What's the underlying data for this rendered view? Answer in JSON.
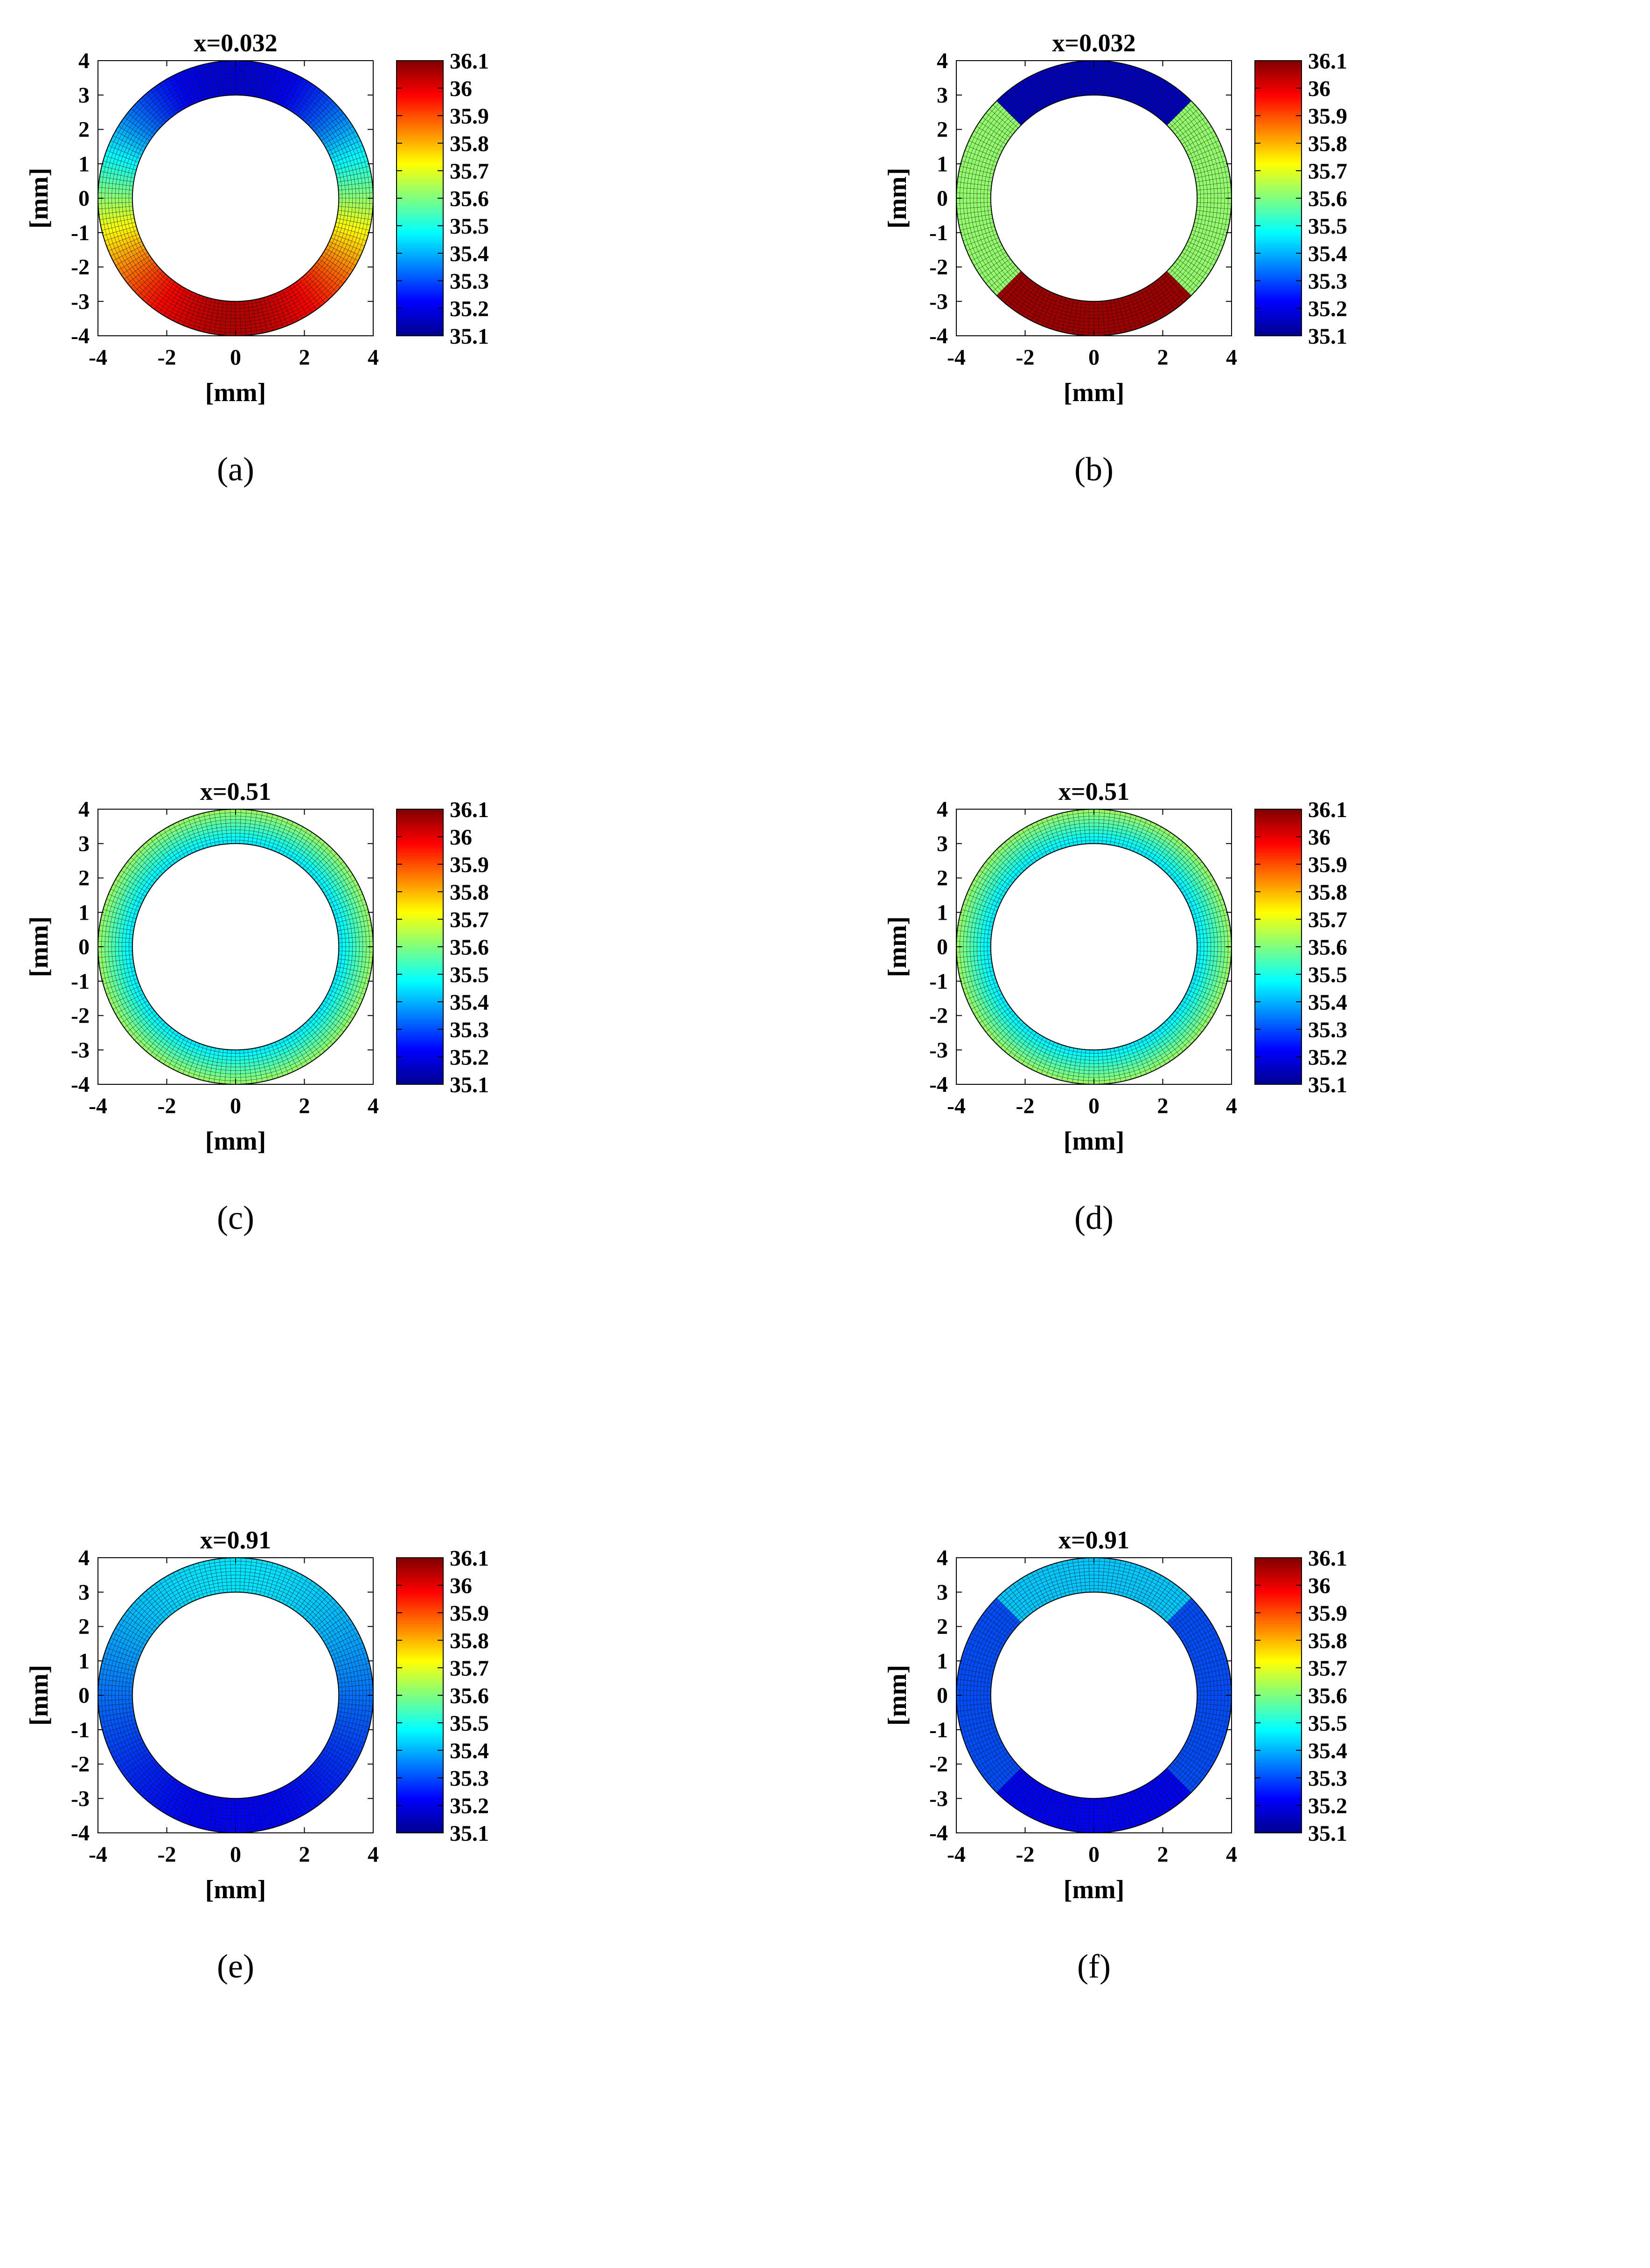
{
  "colormap": [
    "#00008f",
    "#0000ff",
    "#0080ff",
    "#00ffff",
    "#80ff80",
    "#ffff00",
    "#ff8000",
    "#ff0000",
    "#800000"
  ],
  "colorbar": {
    "min": 35.1,
    "max": 36.1,
    "ticks": [
      "36.1",
      "36",
      "35.9",
      "35.8",
      "35.7",
      "35.6",
      "35.5",
      "35.4",
      "35.3",
      "35.2",
      "35.1"
    ]
  },
  "chart_data": [
    {
      "type": "heatmap",
      "label": "(a)",
      "title": "x=0.032",
      "xlabel": "[mm]",
      "ylabel": "[mm]",
      "xlim": [
        -4,
        4
      ],
      "ylim": [
        -4,
        4
      ],
      "xticks": [
        "-4",
        "-2",
        "0",
        "2",
        "4"
      ],
      "yticks": [
        "4",
        "3",
        "2",
        "1",
        "0",
        "-1",
        "-2",
        "-3",
        "-4"
      ],
      "annulus": {
        "inner_radius": 3,
        "outer_radius": 4
      },
      "mode": "smooth",
      "top_value": 35.18,
      "bottom_value": 36.05
    },
    {
      "type": "heatmap",
      "label": "(b)",
      "title": "x=0.032",
      "xlabel": "[mm]",
      "ylabel": "[mm]",
      "xlim": [
        -4,
        4
      ],
      "ylim": [
        -4,
        4
      ],
      "xticks": [
        "-4",
        "-2",
        "0",
        "2",
        "4"
      ],
      "yticks": [
        "4",
        "3",
        "2",
        "1",
        "0",
        "-1",
        "-2",
        "-3",
        "-4"
      ],
      "annulus": {
        "inner_radius": 3,
        "outer_radius": 4
      },
      "mode": "sectors",
      "top_value": 35.15,
      "side_value": 35.62,
      "bottom_value": 36.07
    },
    {
      "type": "heatmap",
      "label": "(c)",
      "title": "x=0.51",
      "xlabel": "[mm]",
      "ylabel": "[mm]",
      "xlim": [
        -4,
        4
      ],
      "ylim": [
        -4,
        4
      ],
      "xticks": [
        "-4",
        "-2",
        "0",
        "2",
        "4"
      ],
      "yticks": [
        "4",
        "3",
        "2",
        "1",
        "0",
        "-1",
        "-2",
        "-3",
        "-4"
      ],
      "annulus": {
        "inner_radius": 3,
        "outer_radius": 4
      },
      "mode": "radial",
      "inner_value": 35.45,
      "outer_value": 35.63
    },
    {
      "type": "heatmap",
      "label": "(d)",
      "title": "x=0.51",
      "xlabel": "[mm]",
      "ylabel": "[mm]",
      "xlim": [
        -4,
        4
      ],
      "ylim": [
        -4,
        4
      ],
      "xticks": [
        "-4",
        "-2",
        "0",
        "2",
        "4"
      ],
      "yticks": [
        "4",
        "3",
        "2",
        "1",
        "0",
        "-1",
        "-2",
        "-3",
        "-4"
      ],
      "annulus": {
        "inner_radius": 3,
        "outer_radius": 4
      },
      "mode": "radial",
      "inner_value": 35.45,
      "outer_value": 35.63
    },
    {
      "type": "heatmap",
      "label": "(e)",
      "title": "x=0.91",
      "xlabel": "[mm]",
      "ylabel": "[mm]",
      "xlim": [
        -4,
        4
      ],
      "ylim": [
        -4,
        4
      ],
      "xticks": [
        "-4",
        "-2",
        "0",
        "2",
        "4"
      ],
      "yticks": [
        "4",
        "3",
        "2",
        "1",
        "0",
        "-1",
        "-2",
        "-3",
        "-4"
      ],
      "annulus": {
        "inner_radius": 3,
        "outer_radius": 4
      },
      "mode": "smooth",
      "top_value": 35.45,
      "bottom_value": 35.22
    },
    {
      "type": "heatmap",
      "label": "(f)",
      "title": "x=0.91",
      "xlabel": "[mm]",
      "ylabel": "[mm]",
      "xlim": [
        -4,
        4
      ],
      "ylim": [
        -4,
        4
      ],
      "xticks": [
        "-4",
        "-2",
        "0",
        "2",
        "4"
      ],
      "yticks": [
        "4",
        "3",
        "2",
        "1",
        "0",
        "-1",
        "-2",
        "-3",
        "-4"
      ],
      "annulus": {
        "inner_radius": 3,
        "outer_radius": 4
      },
      "mode": "sectors",
      "top_value": 35.42,
      "side_value": 35.3,
      "bottom_value": 35.22
    }
  ]
}
